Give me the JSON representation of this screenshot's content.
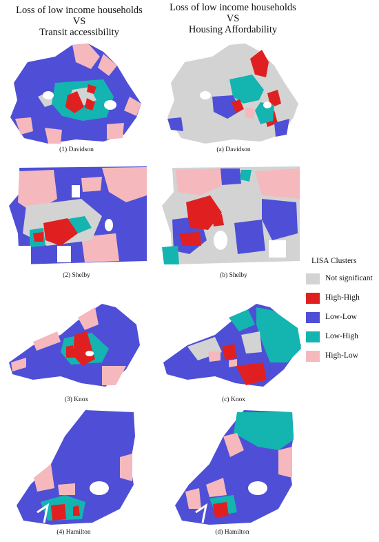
{
  "titles": {
    "left": [
      "Loss of low income households",
      "VS",
      "Transit accessibility"
    ],
    "right": [
      "Loss of low income households",
      "VS",
      "Housing Affordability"
    ]
  },
  "colors": {
    "not_significant": "#d3d3d3",
    "high_high": "#e02020",
    "low_low": "#4e4fd6",
    "low_high": "#14b4b0",
    "high_low": "#f5b8bd"
  },
  "maps": [
    {
      "caption": "(1) Davidson",
      "county": "Davidson",
      "column": "left",
      "base": "low_low"
    },
    {
      "caption": "(a) Davidson",
      "county": "Davidson",
      "column": "right",
      "base": "not_significant"
    },
    {
      "caption": "(2) Shelby",
      "county": "Shelby",
      "column": "left",
      "base": "low_low"
    },
    {
      "caption": "(b) Shelby",
      "county": "Shelby",
      "column": "right",
      "base": "not_significant"
    },
    {
      "caption": "(3) Knox",
      "county": "Knox",
      "column": "left",
      "base": "low_low"
    },
    {
      "caption": "(c) Knox",
      "county": "Knox",
      "column": "right",
      "base": "low_low"
    },
    {
      "caption": "(4) Hamilton",
      "county": "Hamilton",
      "column": "left",
      "base": "low_low"
    },
    {
      "caption": "(d) Hamilton",
      "county": "Hamilton",
      "column": "right",
      "base": "low_low"
    }
  ],
  "legend": {
    "title": "LISA Clusters",
    "items": [
      {
        "label": "Not significant",
        "color": "#d3d3d3"
      },
      {
        "label": "High-High",
        "color": "#e02020"
      },
      {
        "label": "Low-Low",
        "color": "#4e4fd6"
      },
      {
        "label": "Low-High",
        "color": "#14b4b0"
      },
      {
        "label": "High-Low",
        "color": "#f5b8bd"
      }
    ]
  }
}
